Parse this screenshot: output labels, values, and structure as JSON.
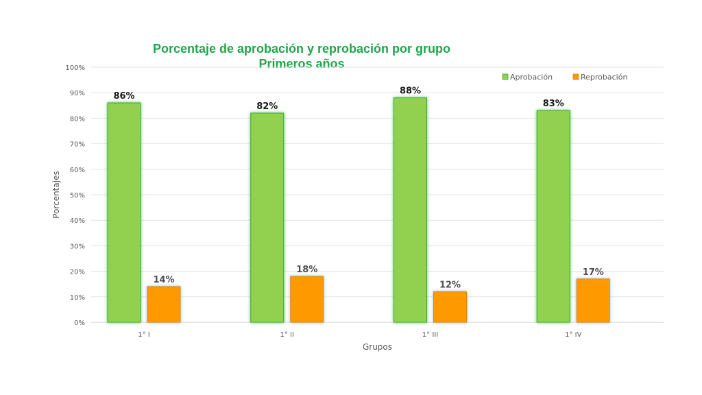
{
  "chart_data": {
    "type": "bar",
    "title": "Porcentaje de aprobación y reprobación por grupo",
    "subtitle": "Primeros años",
    "xlabel": "Grupos",
    "ylabel": "Porcentajes",
    "categories": [
      "1° I",
      "1° II",
      "1° III",
      "1° IV"
    ],
    "ylim": [
      0,
      100
    ],
    "yticks": [
      "0%",
      "10%",
      "20%",
      "30%",
      "40%",
      "50%",
      "60%",
      "70%",
      "80%",
      "90%",
      "100%"
    ],
    "grid": true,
    "legend_position": "top-right",
    "series": [
      {
        "name": "Aprobación",
        "values": [
          86,
          82,
          88,
          83
        ],
        "labels": [
          "86%",
          "82%",
          "88%",
          "83%"
        ],
        "color": "#92d050",
        "glow": "#3fc23f"
      },
      {
        "name": "Reprobación",
        "values": [
          14,
          18,
          12,
          17
        ],
        "labels": [
          "14%",
          "18%",
          "12%",
          "17%"
        ],
        "color": "#ff9900",
        "glow": "#7fb2e5"
      }
    ]
  }
}
